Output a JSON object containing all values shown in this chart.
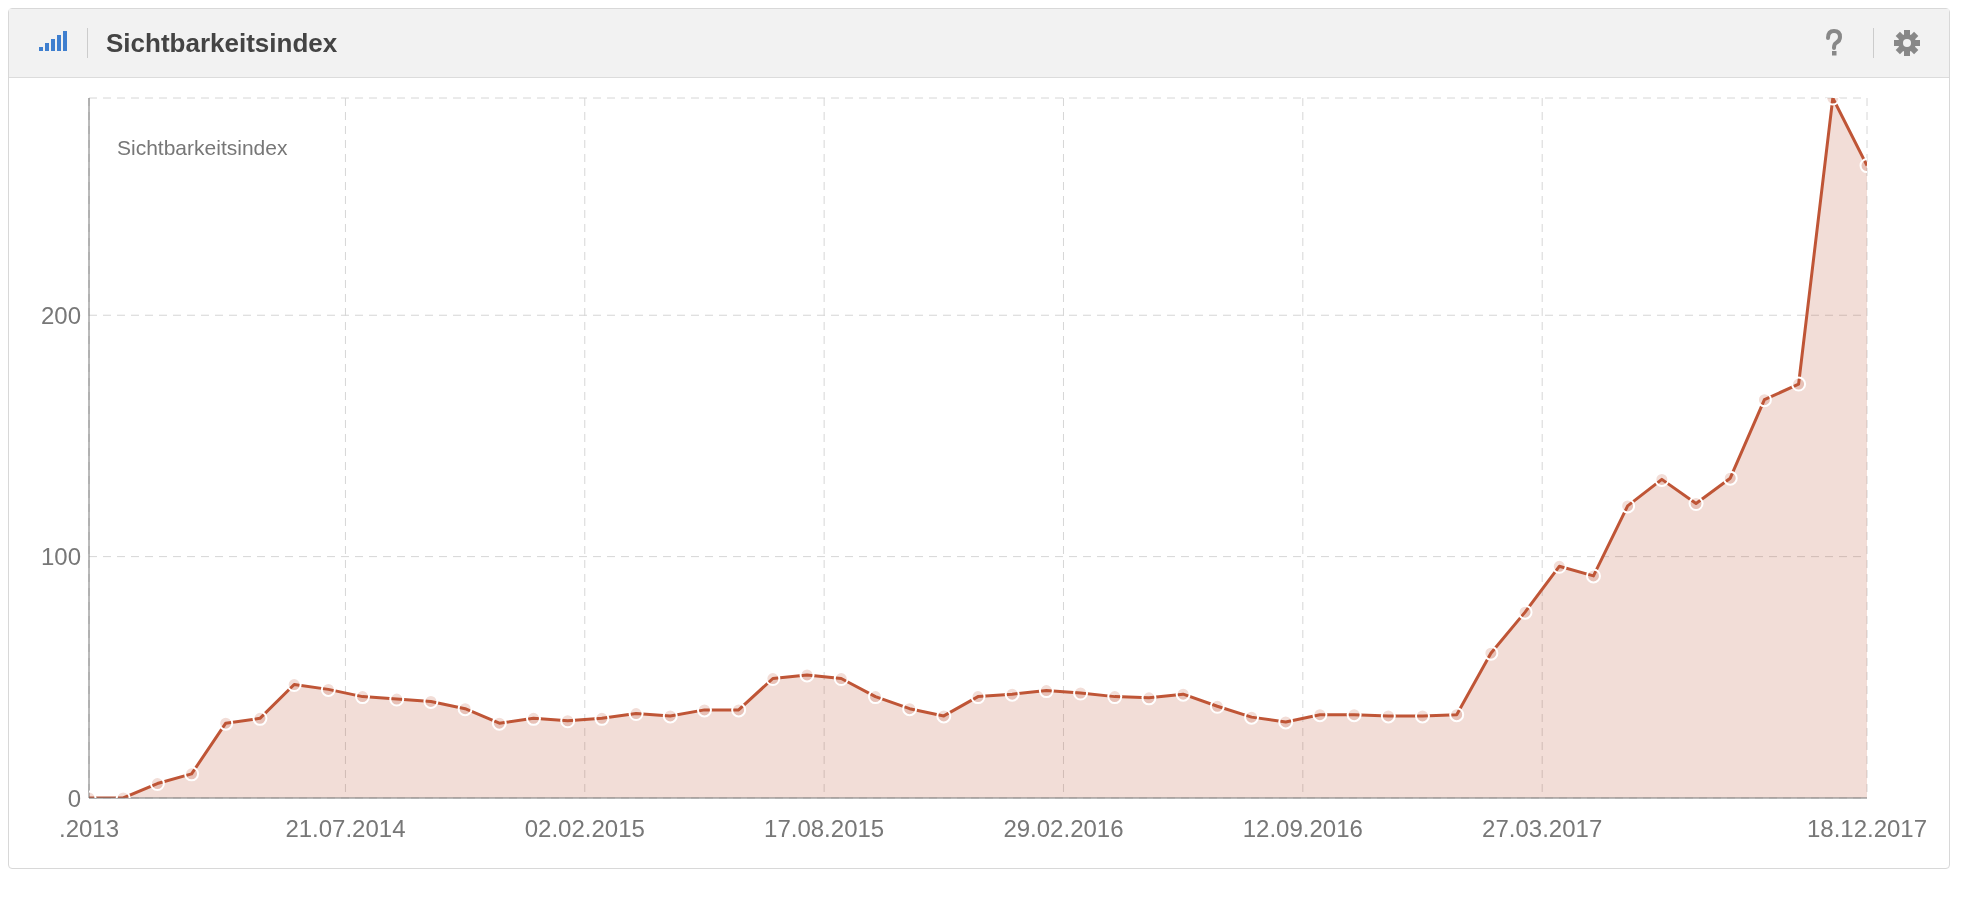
{
  "chart_data": {
    "type": "area",
    "title": "Sichtbarkeitsindex",
    "ylabel": "Sichtbarkeitsindex",
    "x": [
      "2013-12-23",
      "2014-01-20",
      "2014-02-17",
      "2014-03-17",
      "2014-04-14",
      "2014-05-12",
      "2014-06-09",
      "2014-07-07",
      "2014-08-04",
      "2014-09-01",
      "2014-09-29",
      "2014-10-27",
      "2014-11-24",
      "2014-12-22",
      "2015-01-19",
      "2015-02-16",
      "2015-03-16",
      "2015-04-13",
      "2015-05-11",
      "2015-06-08",
      "2015-07-06",
      "2015-08-03",
      "2015-08-31",
      "2015-09-28",
      "2015-10-26",
      "2015-11-23",
      "2015-12-21",
      "2016-01-18",
      "2016-02-15",
      "2016-03-14",
      "2016-04-11",
      "2016-05-09",
      "2016-06-06",
      "2016-07-04",
      "2016-08-01",
      "2016-08-29",
      "2016-09-26",
      "2016-10-24",
      "2016-11-21",
      "2016-12-19",
      "2017-01-16",
      "2017-02-13",
      "2017-03-13",
      "2017-04-10",
      "2017-05-08",
      "2017-06-05",
      "2017-07-03",
      "2017-07-31",
      "2017-08-28",
      "2017-09-25",
      "2017-10-23",
      "2017-11-20",
      "2017-12-18"
    ],
    "series": [
      {
        "color": "#bf5536",
        "values": [
          0,
          0,
          6,
          10,
          31,
          33,
          47,
          45,
          42,
          41,
          40,
          37,
          31,
          33,
          32,
          33,
          35,
          34,
          36.5,
          36.5,
          49.5,
          51,
          49.5,
          42,
          37,
          34,
          42,
          43,
          44.5,
          43.5,
          42,
          41.5,
          43,
          38,
          33.5,
          31.5,
          34.5,
          34.5,
          34,
          34,
          34.5,
          60,
          77,
          96,
          92,
          121,
          132,
          122,
          132.5,
          165,
          171.5,
          290,
          262
        ]
      }
    ],
    "xlim": [
      "2013-12-23",
      "2017-12-18"
    ],
    "xticks": [
      {
        "value": "2013-12-23",
        "label": ".2013"
      },
      {
        "value": "2014-07-21",
        "label": "21.07.2014"
      },
      {
        "value": "2015-02-02",
        "label": "02.02.2015"
      },
      {
        "value": "2015-08-17",
        "label": "17.08.2015"
      },
      {
        "value": "2016-02-29",
        "label": "29.02.2016"
      },
      {
        "value": "2016-09-12",
        "label": "12.09.2016"
      },
      {
        "value": "2017-03-27",
        "label": "27.03.2017"
      },
      {
        "value": "2017-12-18",
        "label": "18.12.2017"
      }
    ],
    "ylim": [
      0,
      290
    ],
    "yticks": [
      0,
      100,
      200
    ],
    "grid": true,
    "marker": "circle",
    "line_style": "solid"
  }
}
